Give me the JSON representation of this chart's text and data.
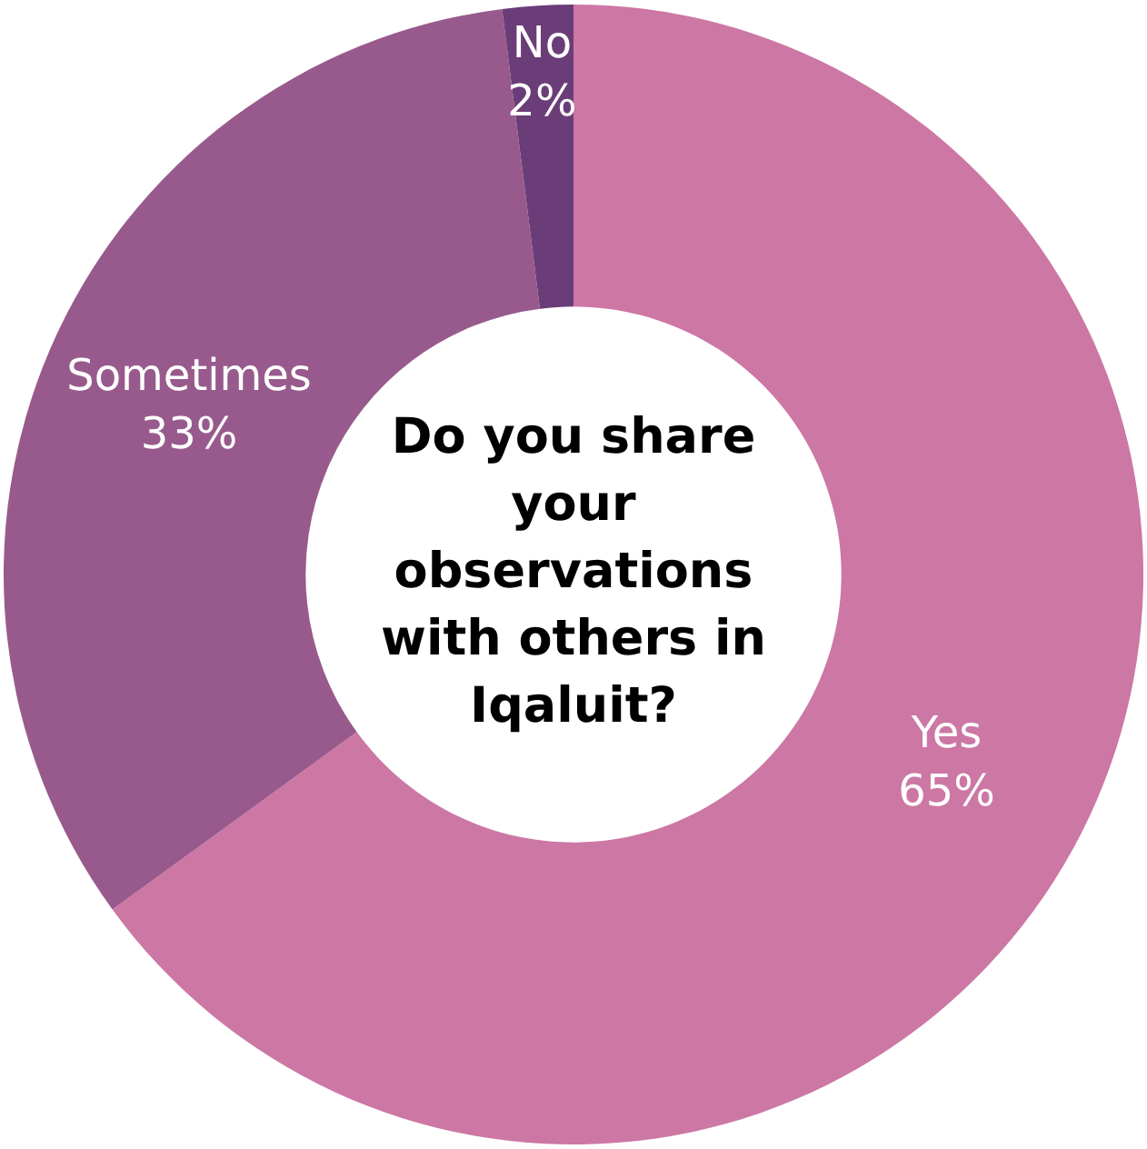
{
  "chart_data": {
    "type": "donut",
    "title": "Do you share your observations with others in Iqaluit?",
    "categories": [
      "Yes",
      "Sometimes",
      "No"
    ],
    "values": [
      65,
      33,
      2
    ],
    "colors": [
      "#cc77a4",
      "#985a8c",
      "#6b3d78"
    ],
    "value_labels": [
      "65%",
      "33%",
      "2%"
    ],
    "legend": false
  }
}
